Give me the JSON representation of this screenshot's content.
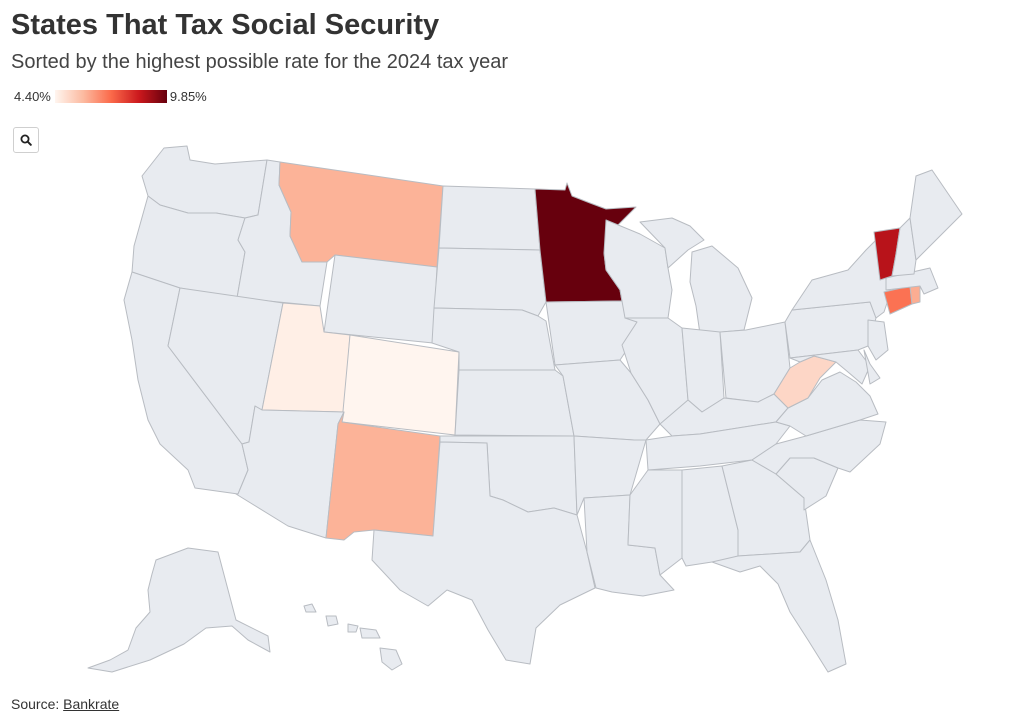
{
  "title": "States That Tax Social Security",
  "subtitle": "Sorted by the highest possible rate for the 2024 tax year",
  "legend": {
    "min_label": "4.40%",
    "max_label": "9.85%",
    "min": 4.4,
    "max": 9.85
  },
  "colors": {
    "no_tax": "#e8ebf0",
    "border": "#b8bcc2",
    "scale": [
      "#fff5ef",
      "#fcbba1",
      "#fb6a4a",
      "#cb181d",
      "#67000d"
    ]
  },
  "search_button": {
    "icon": "search-icon"
  },
  "source": {
    "prefix": "Source:",
    "link_text": "Bankrate"
  },
  "map_data": {
    "type": "choropleth",
    "taxing_states": {
      "MN": 9.85,
      "VT": 8.75,
      "CT": 6.99,
      "RI": 5.99,
      "MT": 5.9,
      "NM": 5.9,
      "WV": 5.12,
      "UT": 4.55,
      "CO": 4.4
    }
  }
}
